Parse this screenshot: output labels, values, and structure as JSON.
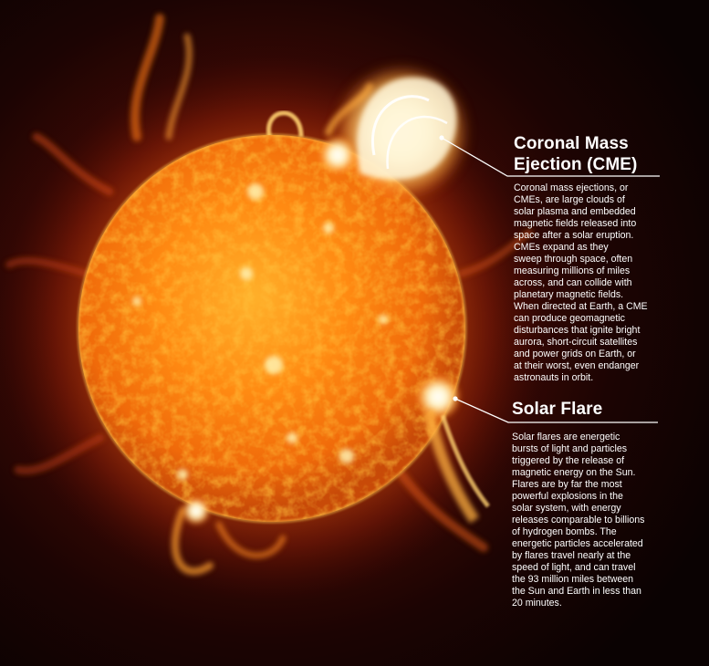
{
  "cme": {
    "heading": [
      "Coronal Mass",
      "Ejection (CME)"
    ],
    "body_lines": [
      "Coronal mass ejections, or",
      "CMEs, are large clouds of",
      "solar plasma and embedded",
      "magnetic fields released into",
      "space after a solar eruption.",
      "CMEs expand as they",
      "sweep through space, often",
      "measuring millions of miles",
      "across, and can collide with",
      "planetary magnetic fields.",
      "When directed at Earth, a CME",
      "can produce geomagnetic",
      "disturbances that ignite bright",
      "aurora, short-circuit satellites",
      "and power grids on Earth, or",
      "at their worst, even endanger",
      "astronauts in orbit."
    ]
  },
  "flare": {
    "heading": "Solar Flare",
    "body_lines": [
      "Solar flares are energetic",
      "bursts of light and particles",
      "triggered by the release of",
      "magnetic energy on the Sun.",
      "Flares are by far the most",
      "powerful explosions in the",
      "solar system, with energy",
      "releases comparable to billions",
      "of hydrogen bombs. The",
      "energetic particles accelerated",
      "by flares travel nearly at the",
      "speed of light, and can travel",
      "the 93 million miles between",
      "the Sun and Earth in less than",
      "20 minutes."
    ]
  },
  "colors": {
    "background": "#0a0202",
    "sun_core": "#ff9a1a",
    "sun_edge": "#c84a08",
    "flare_white": "#fffbe8",
    "text": "#ffffff"
  }
}
